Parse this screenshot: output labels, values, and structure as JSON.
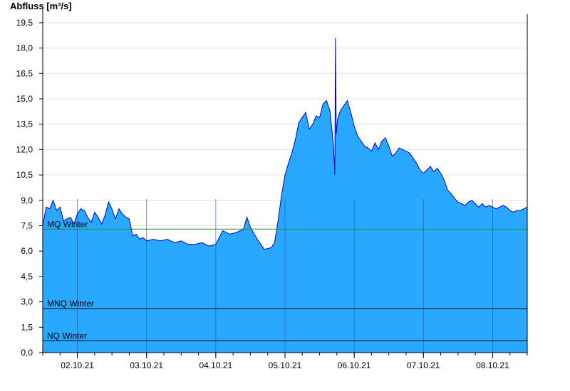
{
  "chart_data": {
    "type": "area",
    "ylabel": "Abfluss [m³/s]",
    "ylim": [
      0,
      20
    ],
    "y_ticks": [
      "0,0",
      "1,5",
      "3,0",
      "4,5",
      "6,0",
      "7,5",
      "9,0",
      "10,5",
      "12,0",
      "13,5",
      "15,0",
      "16,5",
      "18,0",
      "19,5"
    ],
    "x_ticks": [
      "02.10.21",
      "03.10.21",
      "04.10.21",
      "05.10.21",
      "06.10.21",
      "07.10.21",
      "08.10.21"
    ],
    "grid": true,
    "colors": {
      "fill": "#29a8ff",
      "line": "#0000cc",
      "mq": "#2e8b2e",
      "ref": "#000000",
      "grid": "#e0e0e0"
    },
    "reference_lines": [
      {
        "label": "MQ Winter",
        "value": 7.3
      },
      {
        "label": "MNQ Winter",
        "value": 2.6
      },
      {
        "label": "NQ Winter",
        "value": 0.7
      }
    ],
    "x_range_days": [
      1.5,
      8.5
    ],
    "series": [
      {
        "x": [
          1.5,
          1.55,
          1.6,
          1.65,
          1.7,
          1.75,
          1.8,
          1.85,
          1.9,
          1.95,
          2.0,
          2.05,
          2.1,
          2.15,
          2.2,
          2.25,
          2.3,
          2.35,
          2.4,
          2.45,
          2.5,
          2.55,
          2.6,
          2.65,
          2.7,
          2.75,
          2.8,
          2.85,
          2.9,
          2.95,
          3.0,
          3.1,
          3.2,
          3.3,
          3.4,
          3.5,
          3.6,
          3.7,
          3.8,
          3.9,
          4.0,
          4.1,
          4.2,
          4.3,
          4.4,
          4.45,
          4.5,
          4.6,
          4.7,
          4.8,
          4.85,
          4.9,
          4.95,
          5.0,
          5.05,
          5.1,
          5.15,
          5.2,
          5.25,
          5.3,
          5.35,
          5.4,
          5.45,
          5.5,
          5.55,
          5.6,
          5.65,
          5.7,
          5.72,
          5.73,
          5.74,
          5.76,
          5.8,
          5.85,
          5.9,
          5.95,
          6.0,
          6.05,
          6.1,
          6.15,
          6.2,
          6.25,
          6.3,
          6.35,
          6.4,
          6.45,
          6.5,
          6.55,
          6.6,
          6.65,
          6.7,
          6.75,
          6.8,
          6.85,
          6.9,
          6.95,
          7.0,
          7.05,
          7.1,
          7.15,
          7.2,
          7.25,
          7.3,
          7.35,
          7.4,
          7.45,
          7.5,
          7.55,
          7.6,
          7.65,
          7.7,
          7.75,
          7.8,
          7.85,
          7.9,
          7.95,
          8.0,
          8.05,
          8.1,
          8.15,
          8.2,
          8.25,
          8.3,
          8.35,
          8.4,
          8.45,
          8.5
        ],
        "y": [
          7.5,
          8.6,
          8.5,
          9.0,
          8.4,
          8.6,
          7.8,
          7.9,
          8.0,
          7.6,
          8.2,
          8.5,
          8.4,
          8.0,
          7.7,
          8.3,
          8.0,
          7.6,
          8.1,
          8.9,
          8.5,
          7.9,
          8.5,
          8.2,
          8.0,
          7.9,
          6.9,
          7.0,
          6.7,
          6.8,
          6.6,
          6.7,
          6.6,
          6.7,
          6.5,
          6.6,
          6.4,
          6.4,
          6.5,
          6.3,
          6.4,
          7.2,
          7.0,
          7.1,
          7.3,
          8.0,
          7.4,
          6.7,
          6.1,
          6.2,
          6.5,
          7.8,
          9.3,
          10.5,
          11.2,
          11.8,
          12.6,
          13.6,
          13.9,
          14.2,
          13.2,
          13.5,
          14.0,
          13.9,
          14.7,
          14.9,
          14.3,
          12.3,
          10.5,
          18.6,
          12.9,
          13.8,
          14.3,
          14.6,
          14.9,
          14.2,
          13.4,
          12.8,
          12.5,
          12.2,
          12.1,
          11.9,
          12.4,
          12.0,
          12.5,
          12.7,
          12.2,
          11.6,
          11.8,
          12.1,
          12.0,
          11.9,
          11.8,
          11.5,
          11.2,
          10.8,
          10.6,
          10.8,
          11.0,
          10.7,
          10.9,
          10.6,
          10.2,
          9.6,
          9.4,
          9.1,
          8.9,
          8.8,
          8.7,
          8.9,
          9.0,
          8.8,
          8.6,
          8.8,
          8.6,
          8.7,
          8.6,
          8.5,
          8.6,
          8.7,
          8.6,
          8.4,
          8.3,
          8.4,
          8.4,
          8.5,
          8.6
        ]
      }
    ]
  }
}
